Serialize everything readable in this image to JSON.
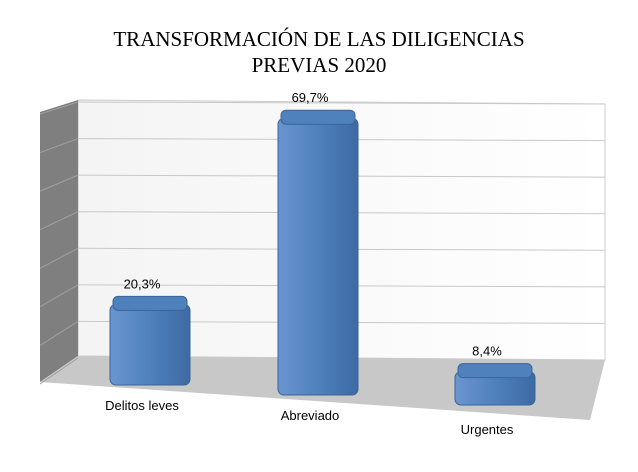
{
  "chart_data": {
    "type": "bar",
    "title": "TRANSFORMACIÓN DE LAS DILIGENCIAS PREVIAS 2020",
    "categories": [
      "Delitos leves",
      "Abreviado",
      "Urgentes"
    ],
    "values": [
      20.3,
      69.7,
      8.4
    ],
    "value_labels": [
      "20,3%",
      "69,7%",
      "8,4%"
    ],
    "color": "#4f81bd",
    "ylim": [
      0,
      70
    ],
    "yticks": [
      0,
      10,
      20,
      30,
      40,
      50,
      60,
      70
    ],
    "grid": true
  }
}
